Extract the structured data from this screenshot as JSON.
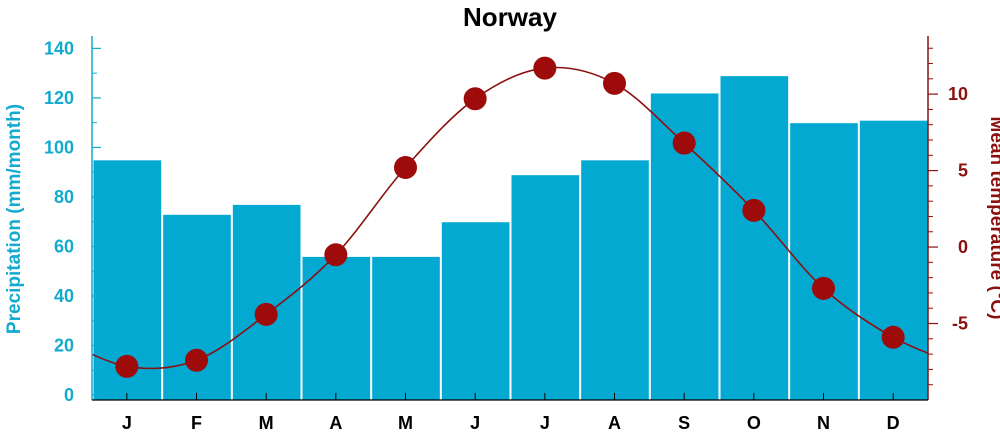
{
  "chart_data": {
    "type": "bar",
    "title": "Norway",
    "categories": [
      "J",
      "F",
      "M",
      "A",
      "M",
      "J",
      "J",
      "A",
      "S",
      "O",
      "N",
      "D"
    ],
    "series": [
      {
        "axis": "left",
        "type": "bar",
        "values": [
          95,
          73,
          77,
          56,
          56,
          70,
          89,
          95,
          122,
          129,
          110,
          111
        ]
      },
      {
        "axis": "right",
        "type": "line",
        "values": [
          -7.8,
          -7.4,
          -4.4,
          -0.5,
          5.2,
          9.7,
          11.7,
          10.7,
          6.8,
          2.4,
          -2.7,
          -5.9
        ]
      }
    ],
    "ylabel_left": "Precipitation (mm/month)",
    "ylabel_right": "Mean temperature (°C)",
    "yticks_left": [
      0,
      20,
      40,
      60,
      80,
      100,
      120,
      140
    ],
    "yticks_right": [
      -5,
      0,
      5,
      10
    ],
    "ylim_left": [
      -2,
      145
    ],
    "ylim_right": [
      -10,
      13.8
    ],
    "grid": false,
    "colors": {
      "bars": "#04A9D2",
      "bar_edge": "#ffffff",
      "left_axis": "#12AACF",
      "right_axis": "#8B1010",
      "line": "#8B1010",
      "marker": "#9E0B0B",
      "text": "#000000"
    }
  }
}
